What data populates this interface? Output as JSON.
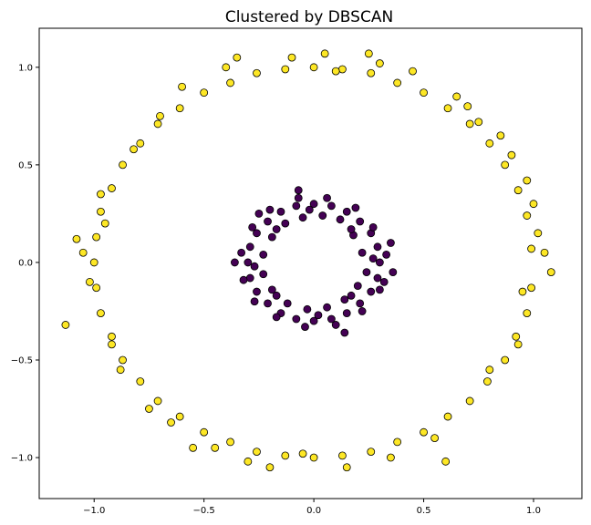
{
  "chart_data": {
    "type": "scatter",
    "title": "Clustered by DBSCAN",
    "xlabel": "",
    "ylabel": "",
    "xlim": [
      -1.25,
      1.22
    ],
    "ylim": [
      -1.21,
      1.2
    ],
    "xticks": [
      -1.0,
      -0.5,
      0.0,
      0.5,
      1.0
    ],
    "xtick_labels": [
      "−1.0",
      "−0.5",
      "0.0",
      "0.5",
      "1.0"
    ],
    "yticks": [
      -1.0,
      -0.5,
      0.0,
      0.5,
      1.0
    ],
    "ytick_labels": [
      "−1.0",
      "−0.5",
      "0.0",
      "0.5",
      "1.0"
    ],
    "grid": false,
    "colors": {
      "outer": "#fde725",
      "inner": "#440154",
      "edge": "#000000"
    },
    "series": [
      {
        "cluster": "outer",
        "color": "#fde725",
        "points": [
          [
            0.99,
            0.07
          ],
          [
            0.97,
            0.24
          ],
          [
            0.93,
            0.37
          ],
          [
            0.87,
            0.5
          ],
          [
            0.8,
            0.61
          ],
          [
            0.71,
            0.71
          ],
          [
            0.61,
            0.79
          ],
          [
            0.5,
            0.87
          ],
          [
            0.38,
            0.92
          ],
          [
            0.26,
            0.97
          ],
          [
            0.13,
            0.99
          ],
          [
            0.0,
            1.0
          ],
          [
            -0.13,
            0.99
          ],
          [
            -0.26,
            0.97
          ],
          [
            -0.38,
            0.92
          ],
          [
            -0.5,
            0.87
          ],
          [
            -0.61,
            0.79
          ],
          [
            -0.71,
            0.71
          ],
          [
            -0.79,
            0.61
          ],
          [
            -0.87,
            0.5
          ],
          [
            -0.92,
            0.38
          ],
          [
            -0.97,
            0.26
          ],
          [
            -0.99,
            0.13
          ],
          [
            -1.0,
            0.0
          ],
          [
            -0.99,
            -0.13
          ],
          [
            -0.97,
            -0.26
          ],
          [
            -0.92,
            -0.38
          ],
          [
            -0.87,
            -0.5
          ],
          [
            -0.79,
            -0.61
          ],
          [
            -0.71,
            -0.71
          ],
          [
            -0.61,
            -0.79
          ],
          [
            -0.5,
            -0.87
          ],
          [
            -0.38,
            -0.92
          ],
          [
            -0.26,
            -0.97
          ],
          [
            -0.13,
            -0.99
          ],
          [
            0.0,
            -1.0
          ],
          [
            0.13,
            -0.99
          ],
          [
            0.26,
            -0.97
          ],
          [
            0.38,
            -0.92
          ],
          [
            0.5,
            -0.87
          ],
          [
            0.61,
            -0.79
          ],
          [
            0.71,
            -0.71
          ],
          [
            0.79,
            -0.61
          ],
          [
            0.87,
            -0.5
          ],
          [
            0.92,
            -0.38
          ],
          [
            0.97,
            -0.26
          ],
          [
            0.99,
            -0.13
          ],
          [
            1.08,
            -0.05
          ],
          [
            1.02,
            0.15
          ],
          [
            -1.13,
            -0.32
          ],
          [
            -1.08,
            0.12
          ],
          [
            0.25,
            1.07
          ],
          [
            -0.35,
            1.05
          ],
          [
            0.6,
            -1.02
          ],
          [
            -0.55,
            -0.95
          ],
          [
            0.9,
            0.55
          ],
          [
            -0.88,
            -0.55
          ],
          [
            0.45,
            0.98
          ],
          [
            -0.6,
            0.9
          ],
          [
            0.8,
            -0.55
          ],
          [
            -0.2,
            -1.05
          ],
          [
            0.05,
            1.07
          ],
          [
            1.0,
            0.3
          ],
          [
            -0.95,
            0.2
          ],
          [
            0.7,
            0.8
          ],
          [
            -0.75,
            -0.75
          ],
          [
            0.35,
            -1.0
          ],
          [
            -0.4,
            1.0
          ],
          [
            0.95,
            -0.15
          ],
          [
            -1.02,
            -0.1
          ],
          [
            0.15,
            -1.05
          ],
          [
            -0.1,
            1.05
          ],
          [
            0.85,
            0.65
          ],
          [
            -0.82,
            0.58
          ],
          [
            0.55,
            -0.9
          ],
          [
            -0.45,
            -0.95
          ],
          [
            1.05,
            0.05
          ],
          [
            -1.05,
            0.05
          ],
          [
            0.3,
            1.02
          ],
          [
            -0.3,
            -1.02
          ],
          [
            0.75,
            0.72
          ],
          [
            -0.7,
            0.75
          ],
          [
            0.93,
            -0.42
          ],
          [
            -0.92,
            -0.42
          ],
          [
            0.1,
            0.98
          ],
          [
            -0.05,
            -0.98
          ],
          [
            0.65,
            0.85
          ],
          [
            -0.65,
            -0.82
          ],
          [
            0.97,
            0.42
          ],
          [
            -0.97,
            0.35
          ]
        ]
      },
      {
        "cluster": "inner",
        "color": "#440154",
        "points": [
          [
            0.3,
            0.0
          ],
          [
            0.29,
            0.08
          ],
          [
            0.26,
            0.15
          ],
          [
            0.21,
            0.21
          ],
          [
            0.15,
            0.26
          ],
          [
            0.08,
            0.29
          ],
          [
            0.0,
            0.3
          ],
          [
            -0.08,
            0.29
          ],
          [
            -0.15,
            0.26
          ],
          [
            -0.21,
            0.21
          ],
          [
            -0.26,
            0.15
          ],
          [
            -0.29,
            0.08
          ],
          [
            -0.3,
            0.0
          ],
          [
            -0.29,
            -0.08
          ],
          [
            -0.26,
            -0.15
          ],
          [
            -0.21,
            -0.21
          ],
          [
            -0.15,
            -0.26
          ],
          [
            -0.08,
            -0.29
          ],
          [
            0.0,
            -0.3
          ],
          [
            0.08,
            -0.29
          ],
          [
            0.15,
            -0.26
          ],
          [
            0.21,
            -0.21
          ],
          [
            0.26,
            -0.15
          ],
          [
            0.29,
            -0.08
          ],
          [
            0.22,
            0.05
          ],
          [
            0.24,
            -0.05
          ],
          [
            0.18,
            0.14
          ],
          [
            0.12,
            0.22
          ],
          [
            0.04,
            0.24
          ],
          [
            -0.05,
            0.23
          ],
          [
            -0.13,
            0.2
          ],
          [
            -0.19,
            0.13
          ],
          [
            -0.23,
            0.04
          ],
          [
            -0.23,
            -0.06
          ],
          [
            -0.19,
            -0.14
          ],
          [
            -0.12,
            -0.21
          ],
          [
            -0.03,
            -0.24
          ],
          [
            0.06,
            -0.23
          ],
          [
            0.14,
            -0.19
          ],
          [
            0.2,
            -0.12
          ],
          [
            0.33,
            0.04
          ],
          [
            0.32,
            -0.1
          ],
          [
            0.27,
            0.18
          ],
          [
            0.19,
            0.28
          ],
          [
            0.06,
            0.33
          ],
          [
            -0.07,
            0.33
          ],
          [
            -0.2,
            0.27
          ],
          [
            -0.28,
            0.18
          ],
          [
            -0.33,
            0.05
          ],
          [
            -0.32,
            -0.09
          ],
          [
            -0.27,
            -0.2
          ],
          [
            -0.17,
            -0.28
          ],
          [
            -0.04,
            -0.33
          ],
          [
            0.1,
            -0.32
          ],
          [
            0.22,
            -0.25
          ],
          [
            0.3,
            -0.14
          ],
          [
            -0.07,
            0.37
          ],
          [
            0.14,
            -0.36
          ],
          [
            0.35,
            0.1
          ],
          [
            -0.25,
            0.25
          ],
          [
            0.02,
            -0.27
          ],
          [
            -0.02,
            0.27
          ],
          [
            0.27,
            0.02
          ],
          [
            -0.27,
            -0.02
          ],
          [
            0.17,
            0.17
          ],
          [
            -0.17,
            -0.17
          ],
          [
            0.17,
            -0.17
          ],
          [
            -0.17,
            0.17
          ],
          [
            0.36,
            -0.05
          ],
          [
            -0.36,
            0.0
          ]
        ]
      }
    ]
  }
}
